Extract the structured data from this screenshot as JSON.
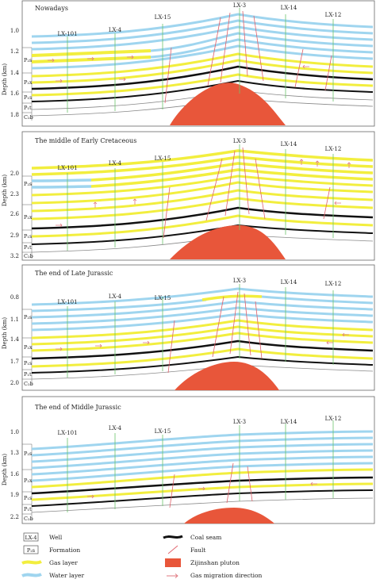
{
  "panels": [
    {
      "title": "Nowadays",
      "depth_ticks": [
        "1.0",
        "1.2",
        "1.4",
        "1.6",
        "1.8"
      ],
      "formations": [
        "P₂s",
        "P₂x",
        "P₁s",
        "P₁t",
        "C₂b"
      ],
      "wells": [
        "LX-101",
        "LX-4",
        "LX-15",
        "LX-3",
        "LX-14",
        "LX-12"
      ]
    },
    {
      "title": "The middle of Early Cretaceous",
      "depth_ticks": [
        "2.0",
        "2.3",
        "2.6",
        "2.9",
        "3.2"
      ],
      "formations": [
        "P₂s",
        "P₂x",
        "P₁s",
        "P₁t",
        "C₂b"
      ],
      "wells": [
        "LX-101",
        "LX-4",
        "LX-15",
        "LX-3",
        "LX-14",
        "LX-12"
      ]
    },
    {
      "title": "The end of Late Jurassic",
      "depth_ticks": [
        "0.8",
        "1.1",
        "1.4",
        "1.7",
        "2.0"
      ],
      "formations": [
        "P₂s",
        "P₂x",
        "P₁s",
        "P₁t",
        "C₂b"
      ],
      "wells": [
        "LX-101",
        "LX-4",
        "LX-15",
        "LX-3",
        "LX-14",
        "LX-12"
      ]
    },
    {
      "title": "The end of Middle Jurassic",
      "depth_ticks": [
        "1.0",
        "1.3",
        "1.6",
        "1.9",
        "2.2"
      ],
      "formations": [
        "P₂s",
        "P₂x",
        "P₁s",
        "P₁t",
        "C₂b"
      ],
      "wells": [
        "LX-101",
        "LX-4",
        "LX-15",
        "LX-3",
        "LX-14",
        "LX-12"
      ]
    }
  ],
  "axis_label": "Depth (km)",
  "legend": {
    "well_symbol": "LX-4",
    "formation_symbol": "P₂s",
    "items": {
      "well": "Well",
      "formation": "Formation",
      "gas_layer": "Gas layer",
      "water_layer": "Water layer",
      "coal_seam": "Coal seam",
      "fault": "Fault",
      "pluton": "Zijinshan pluton",
      "gas_migration": "Gas migration direction"
    }
  },
  "colors": {
    "gas": "#f2ee3e",
    "water": "#9fd5ef",
    "pluton": "#e8563a",
    "coal": "#111111",
    "fault": "#e0606a",
    "well": "#6cc46c",
    "arrow": "#e07a80"
  }
}
